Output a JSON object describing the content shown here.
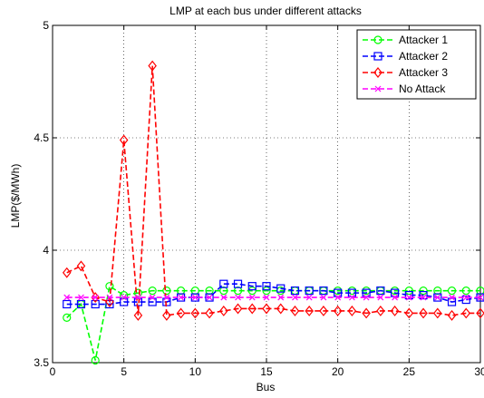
{
  "chart_data": {
    "type": "line",
    "title": "LMP at each bus under different attacks",
    "xlabel": "Bus",
    "ylabel": "LMP($/MWh)",
    "xlim": [
      0,
      30
    ],
    "ylim": [
      3.5,
      5
    ],
    "xticks": [
      0,
      5,
      10,
      15,
      20,
      25,
      30
    ],
    "yticks": [
      3.5,
      4,
      4.5,
      5
    ],
    "ytick_labels": [
      "3.5",
      "4",
      "4.5",
      "5"
    ],
    "grid": true,
    "legend_position": "top-right",
    "x": [
      1,
      2,
      3,
      4,
      5,
      6,
      7,
      8,
      9,
      10,
      11,
      12,
      13,
      14,
      15,
      16,
      17,
      18,
      19,
      20,
      21,
      22,
      23,
      24,
      25,
      26,
      27,
      28,
      29,
      30
    ],
    "series": [
      {
        "name": "Attacker 1",
        "color": "#00ff00",
        "marker": "circle",
        "values": [
          3.7,
          3.76,
          3.51,
          3.84,
          3.8,
          3.81,
          3.82,
          3.82,
          3.82,
          3.82,
          3.82,
          3.82,
          3.82,
          3.82,
          3.82,
          3.82,
          3.82,
          3.82,
          3.82,
          3.82,
          3.82,
          3.82,
          3.82,
          3.82,
          3.82,
          3.82,
          3.82,
          3.82,
          3.82,
          3.82
        ]
      },
      {
        "name": "Attacker 2",
        "color": "#0000ff",
        "marker": "square",
        "values": [
          3.76,
          3.76,
          3.76,
          3.76,
          3.77,
          3.77,
          3.77,
          3.77,
          3.79,
          3.79,
          3.79,
          3.85,
          3.85,
          3.84,
          3.84,
          3.83,
          3.82,
          3.82,
          3.82,
          3.81,
          3.81,
          3.81,
          3.82,
          3.81,
          3.8,
          3.8,
          3.79,
          3.77,
          3.78,
          3.79
        ]
      },
      {
        "name": "Attacker 3",
        "color": "#ff0000",
        "marker": "diamond",
        "values": [
          3.9,
          3.93,
          3.79,
          3.77,
          4.49,
          3.71,
          4.82,
          3.71,
          3.72,
          3.72,
          3.72,
          3.73,
          3.74,
          3.74,
          3.74,
          3.74,
          3.73,
          3.73,
          3.73,
          3.73,
          3.73,
          3.72,
          3.73,
          3.73,
          3.72,
          3.72,
          3.72,
          3.71,
          3.72,
          3.72
        ]
      },
      {
        "name": "No Attack",
        "color": "#ff00ff",
        "marker": "x",
        "values": [
          3.79,
          3.79,
          3.79,
          3.79,
          3.79,
          3.79,
          3.79,
          3.79,
          3.79,
          3.79,
          3.79,
          3.79,
          3.79,
          3.79,
          3.79,
          3.79,
          3.79,
          3.79,
          3.79,
          3.79,
          3.79,
          3.79,
          3.79,
          3.79,
          3.79,
          3.79,
          3.79,
          3.79,
          3.79,
          3.79
        ]
      }
    ]
  }
}
